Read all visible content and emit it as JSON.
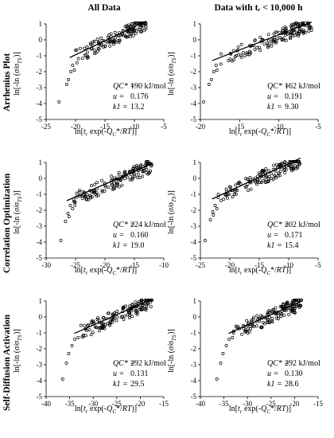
{
  "columns": [
    "All Data",
    "Data with tᵣ < 10,000 h"
  ],
  "rows": [
    "Arrhenius Plot",
    "Correlation Optimization",
    "Self-Diffusion Activation"
  ],
  "ylabel": "ln[-ln (σ/σTS)]",
  "xlabel": "ln[tr exp(-QC*/RT)]",
  "annotation_labels": {
    "q": "QC* =",
    "u": "u =",
    "k": "k1 ="
  },
  "chart_data": [
    {
      "type": "scatter",
      "row": 0,
      "col": 0,
      "xlim": [
        -25,
        -5
      ],
      "xticks": [
        -25,
        -20,
        -15,
        -10,
        -5
      ],
      "ylim": [
        -5,
        1
      ],
      "yticks": [
        -5,
        -4,
        -3,
        -2,
        -1,
        0,
        1
      ],
      "Q": "190 kJ/mol",
      "u": "0.176",
      "k1": "13.2",
      "fit": {
        "slope": 0.176,
        "intercept": 2.58
      },
      "outliers": [
        [
          -22.8,
          -3.9
        ],
        [
          -21.2,
          -2.5
        ],
        [
          -20.8,
          -2.0
        ],
        [
          -20.5,
          -1.6
        ],
        [
          -21.5,
          -2.8
        ],
        [
          -20.2,
          -1.9
        ]
      ],
      "dense_x": [
        -20,
        -8
      ],
      "spread": 0.45
    },
    {
      "type": "scatter",
      "row": 0,
      "col": 1,
      "xlim": [
        -20,
        -5
      ],
      "xticks": [
        -20,
        -15,
        -10,
        -5
      ],
      "ylim": [
        -5,
        1
      ],
      "yticks": [
        -5,
        -4,
        -3,
        -2,
        -1,
        0,
        1
      ],
      "Q": "162 kJ/mol",
      "u": "0.191",
      "k1": "9.30",
      "fit": {
        "slope": 0.191,
        "intercept": 2.23
      },
      "outliers": [
        [
          -19.6,
          -3.9
        ],
        [
          -18.6,
          -2.5
        ],
        [
          -18.3,
          -2.0
        ],
        [
          -18.0,
          -1.6
        ],
        [
          -18.9,
          -2.8
        ],
        [
          -17.9,
          -1.9
        ]
      ],
      "dense_x": [
        -17.5,
        -5.8
      ],
      "spread": 0.45
    },
    {
      "type": "scatter",
      "row": 1,
      "col": 0,
      "xlim": [
        -30,
        -10
      ],
      "xticks": [
        -30,
        -25,
        -20,
        -15,
        -10
      ],
      "ylim": [
        -5,
        1
      ],
      "yticks": [
        -5,
        -4,
        -3,
        -2,
        -1,
        0,
        1
      ],
      "Q": "224 kJ/mol",
      "u": "0.160",
      "k1": "19.0",
      "fit": {
        "slope": 0.16,
        "intercept": 2.84
      },
      "outliers": [
        [
          -27.5,
          -3.9
        ],
        [
          -26.7,
          -2.7
        ],
        [
          -26.3,
          -2.2
        ],
        [
          -25.9,
          -1.7
        ],
        [
          -25.5,
          -1.9
        ],
        [
          -26.1,
          -2.4
        ]
      ],
      "dense_x": [
        -25.5,
        -12
      ],
      "spread": 0.45
    },
    {
      "type": "scatter",
      "row": 1,
      "col": 1,
      "xlim": [
        -25,
        -5
      ],
      "xticks": [
        -25,
        -20,
        -15,
        -10,
        -5
      ],
      "ylim": [
        -5,
        1
      ],
      "yticks": [
        -5,
        -4,
        -3,
        -2,
        -1,
        0,
        1
      ],
      "Q": "202 kJ/mol",
      "u": "0.171",
      "k1": "15.4",
      "fit": {
        "slope": 0.171,
        "intercept": 2.64
      },
      "outliers": [
        [
          -24.2,
          -3.9
        ],
        [
          -23.3,
          -2.6
        ],
        [
          -22.9,
          -2.1
        ],
        [
          -22.5,
          -1.7
        ],
        [
          -22.2,
          -1.9
        ],
        [
          -22.8,
          -2.3
        ]
      ],
      "dense_x": [
        -22,
        -8
      ],
      "spread": 0.45
    },
    {
      "type": "scatter",
      "row": 2,
      "col": 0,
      "xlim": [
        -40,
        -15
      ],
      "xticks": [
        -40,
        -35,
        -30,
        -25,
        -20,
        -15
      ],
      "ylim": [
        -5,
        1
      ],
      "yticks": [
        -5,
        -4,
        -3,
        -2,
        -1,
        0,
        1
      ],
      "Q": "292 kJ/mol",
      "u": "0.131",
      "k1": "29.5",
      "fit": {
        "slope": 0.131,
        "intercept": 3.42
      },
      "outliers": [
        [
          -36.5,
          -3.9
        ],
        [
          -35.7,
          -2.9
        ],
        [
          -35.2,
          -2.3
        ],
        [
          -34.5,
          -1.8
        ],
        [
          -33.9,
          -1.4
        ],
        [
          -33.2,
          -1.3
        ]
      ],
      "dense_x": [
        -33,
        -17.5
      ],
      "spread": 0.45
    },
    {
      "type": "scatter",
      "row": 2,
      "col": 1,
      "xlim": [
        -40,
        -15
      ],
      "xticks": [
        -40,
        -35,
        -30,
        -25,
        -20,
        -15
      ],
      "ylim": [
        -5,
        1
      ],
      "yticks": [
        -5,
        -4,
        -3,
        -2,
        -1,
        0,
        1
      ],
      "Q": "292 kJ/mol",
      "u": "0.130",
      "k1": "28.6",
      "fit": {
        "slope": 0.13,
        "intercept": 3.39
      },
      "outliers": [
        [
          -36.5,
          -3.9
        ],
        [
          -35.7,
          -2.9
        ],
        [
          -35.2,
          -2.3
        ],
        [
          -34.5,
          -1.8
        ],
        [
          -33.9,
          -1.4
        ],
        [
          -33.2,
          -1.3
        ]
      ],
      "dense_x": [
        -33,
        -18.5
      ],
      "spread": 0.45
    }
  ]
}
